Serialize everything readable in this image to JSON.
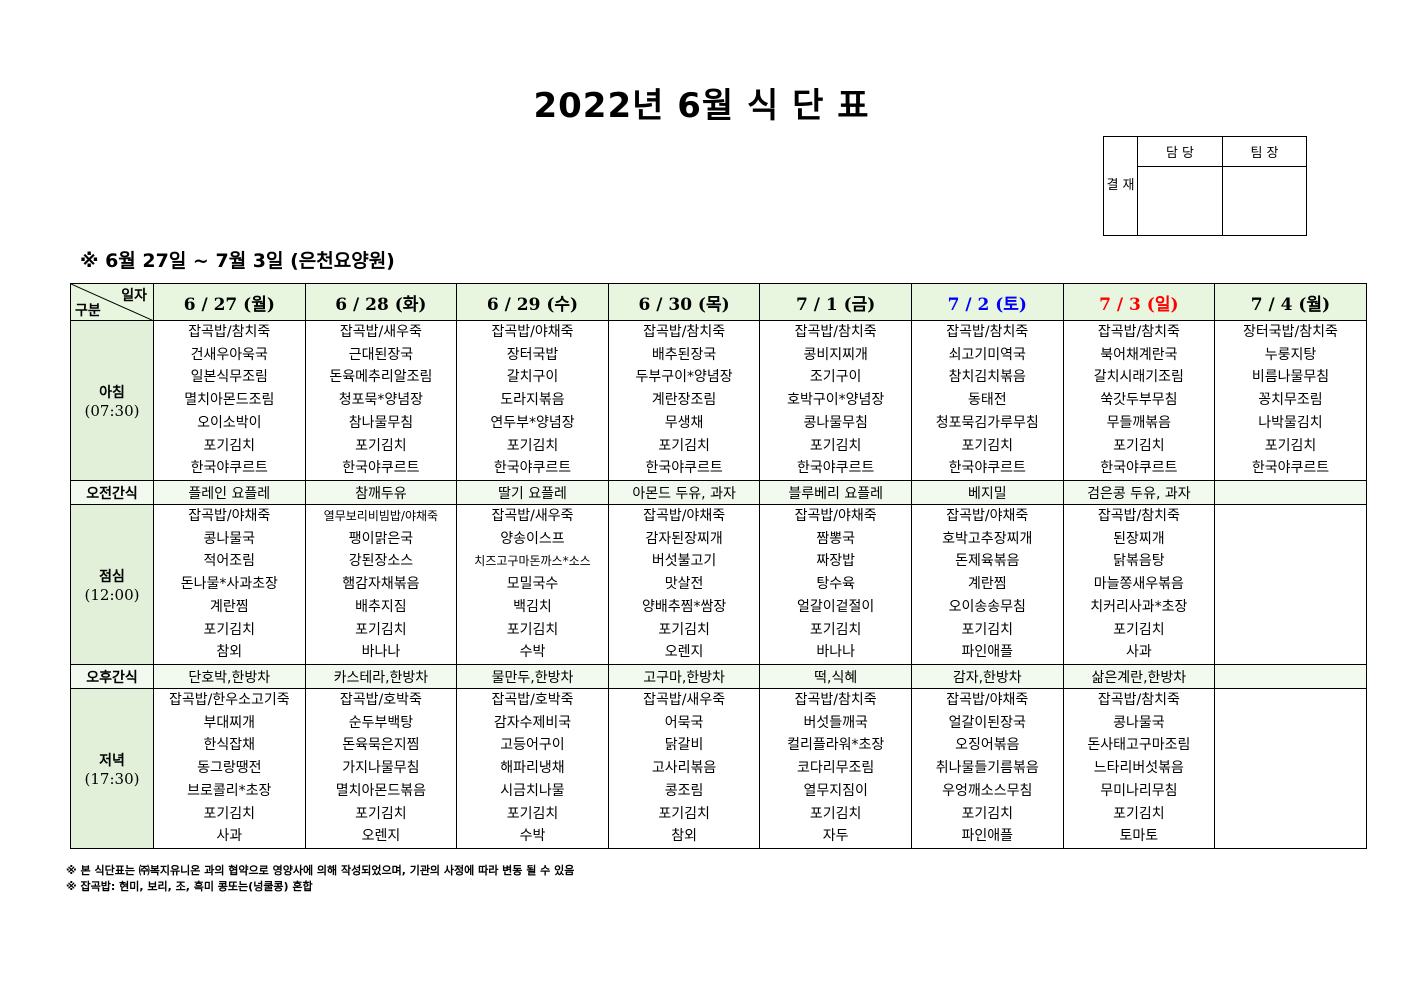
{
  "title": "2022년 6월 식 단 표",
  "approval": {
    "label": "결 재",
    "roles": [
      "담 당",
      "팀 장"
    ]
  },
  "subtitle": "※ 6월 27일 ~ 7월 3일 (은천요양원)",
  "corner": {
    "top": "일자",
    "bottom": "구분"
  },
  "colors": {
    "header_bg": "#e8f6df",
    "label_bg": "#e2f0d9",
    "saturday": "#0000ff",
    "sunday": "#ff0000"
  },
  "days": [
    {
      "label": "6 / 27 (월)",
      "color": "#000000"
    },
    {
      "label": "6 / 28 (화)",
      "color": "#000000"
    },
    {
      "label": "6 / 29 (수)",
      "color": "#000000"
    },
    {
      "label": "6 / 30 (목)",
      "color": "#000000"
    },
    {
      "label": "7 / 1 (금)",
      "color": "#000000"
    },
    {
      "label": "7 / 2 (토)",
      "color": "#0000ff"
    },
    {
      "label": "7 / 3 (일)",
      "color": "#ff0000"
    },
    {
      "label": "7 / 4 (월)",
      "color": "#000000"
    }
  ],
  "meals": [
    {
      "type": "main",
      "label": "아침",
      "time": "(07:30)",
      "cells": [
        [
          "잡곡밥/참치죽",
          "건새우아욱국",
          "일본식무조림",
          "멸치아몬드조림",
          "오이소박이",
          "포기김치",
          "한국야쿠르트"
        ],
        [
          "잡곡밥/새우죽",
          "근대된장국",
          "돈육메추리알조림",
          "청포묵*양념장",
          "참나물무침",
          "포기김치",
          "한국야쿠르트"
        ],
        [
          "잡곡밥/야채죽",
          "장터국밥",
          "갈치구이",
          "도라지볶음",
          "연두부*양념장",
          "포기김치",
          "한국야쿠르트"
        ],
        [
          "잡곡밥/참치죽",
          "배추된장국",
          "두부구이*양념장",
          "계란장조림",
          "무생채",
          "포기김치",
          "한국야쿠르트"
        ],
        [
          "잡곡밥/참치죽",
          "콩비지찌개",
          "조기구이",
          "호박구이*양념장",
          "콩나물무침",
          "포기김치",
          "한국야쿠르트"
        ],
        [
          "잡곡밥/참치죽",
          "쇠고기미역국",
          "참치김치볶음",
          "동태전",
          "청포묵김가루무침",
          "포기김치",
          "한국야쿠르트"
        ],
        [
          "잡곡밥/참치죽",
          "북어채계란국",
          "갈치시래기조림",
          "쑥갓두부무침",
          "무들깨볶음",
          "포기김치",
          "한국야쿠르트"
        ],
        [
          "장터국밥/참치죽",
          "누룽지탕",
          "비름나물무침",
          "꽁치무조림",
          "나박물김치",
          "포기김치",
          "한국야쿠르트"
        ]
      ]
    },
    {
      "type": "snack",
      "label": "오전간식",
      "cells": [
        "플레인 요플레",
        "참깨두유",
        "딸기 요플레",
        "아몬드 두유, 과자",
        "블루베리 요플레",
        "베지밀",
        "검은콩 두유, 과자",
        ""
      ]
    },
    {
      "type": "main",
      "label": "점심",
      "time": "(12:00)",
      "cells": [
        [
          "잡곡밥/야채죽",
          "콩나물국",
          "적어조림",
          "돈나물*사과초장",
          "계란찜",
          "포기김치",
          "참외"
        ],
        [
          "열무보리비빔밥/야채죽",
          "팽이맑은국",
          "강된장소스",
          "햄감자채볶음",
          "배추지짐",
          "포기김치",
          "바나나"
        ],
        [
          "잡곡밥/새우죽",
          "양송이스프",
          "치즈고구마돈까스*소스",
          "모밀국수",
          "백김치",
          "포기김치",
          "수박"
        ],
        [
          "잡곡밥/야채죽",
          "감자된장찌개",
          "버섯불고기",
          "맛살전",
          "양배추찜*쌈장",
          "포기김치",
          "오렌지"
        ],
        [
          "잡곡밥/야채죽",
          "짬뽕국",
          "짜장밥",
          "탕수육",
          "얼갈이겉절이",
          "포기김치",
          "바나나"
        ],
        [
          "잡곡밥/야채죽",
          "호박고추장찌개",
          "돈제육볶음",
          "계란찜",
          "오이송송무침",
          "포기김치",
          "파인애플"
        ],
        [
          "잡곡밥/참치죽",
          "된장찌개",
          "닭볶음탕",
          "마늘쫑새우볶음",
          "치커리사과*초장",
          "포기김치",
          "사과"
        ],
        []
      ]
    },
    {
      "type": "snack",
      "label": "오후간식",
      "cells": [
        "단호박,한방차",
        "카스테라,한방차",
        "물만두,한방차",
        "고구마,한방차",
        "떡,식혜",
        "감자,한방차",
        "삶은계란,한방차",
        ""
      ]
    },
    {
      "type": "main",
      "label": "저녁",
      "time": "(17:30)",
      "cells": [
        [
          "잡곡밥/한우소고기죽",
          "부대찌개",
          "한식잡채",
          "동그랑땡전",
          "브로콜리*초장",
          "포기김치",
          "사과"
        ],
        [
          "잡곡밥/호박죽",
          "순두부백탕",
          "돈육묵은지찜",
          "가지나물무침",
          "멸치아몬드볶음",
          "포기김치",
          "오렌지"
        ],
        [
          "잡곡밥/호박죽",
          "감자수제비국",
          "고등어구이",
          "해파리냉채",
          "시금치나물",
          "포기김치",
          "수박"
        ],
        [
          "잡곡밥/새우죽",
          "어묵국",
          "닭갈비",
          "고사리볶음",
          "콩조림",
          "포기김치",
          "참외"
        ],
        [
          "잡곡밥/참치죽",
          "버섯들깨국",
          "컬리플라워*초장",
          "코다리무조림",
          "열무지짐이",
          "포기김치",
          "자두"
        ],
        [
          "잡곡밥/야채죽",
          "얼갈이된장국",
          "오징어볶음",
          "취나물들기름볶음",
          "우엉깨소스무침",
          "포기김치",
          "파인애플"
        ],
        [
          "잡곡밥/참치죽",
          "콩나물국",
          "돈사태고구마조림",
          "느타리버섯볶음",
          "무미나리무침",
          "포기김치",
          "토마토"
        ],
        []
      ]
    }
  ],
  "notes": [
    "※ 본 식단표는 ㈜복지유니온 과의 협약으로 영양사에 의해 작성되었으며, 기관의 사정에 따라 변동 될 수 있음",
    "※ 잡곡밥: 현미, 보리, 조, 흑미 콩또는(넝쿨콩) 혼합"
  ]
}
